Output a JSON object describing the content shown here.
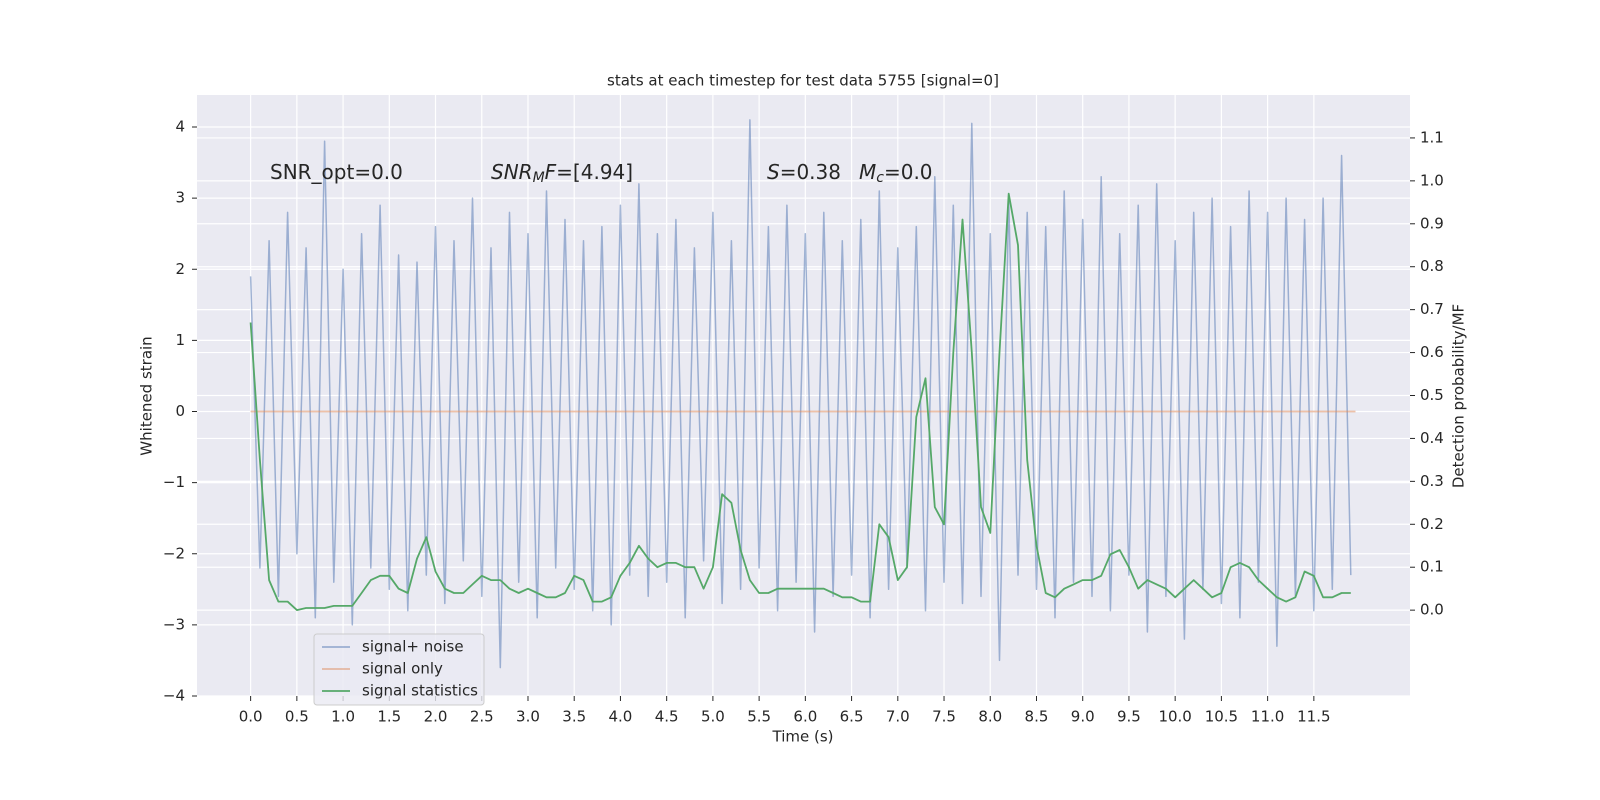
{
  "chart_data": {
    "type": "line",
    "title": "stats at each timestep for test data 5755 [signal=0]",
    "xlabel": "Time (s)",
    "ylabel": "Whitened strain",
    "y2label": "Detection probability/MF",
    "grid": true,
    "xlim": [
      -0.58,
      12.54
    ],
    "ylim": [
      -4,
      4.45
    ],
    "y2lim": [
      -0.2,
      1.2
    ],
    "xticks": [
      {
        "value": 0,
        "label": "0.0"
      },
      {
        "value": 0.5,
        "label": "0.5"
      },
      {
        "value": 1,
        "label": "1.0"
      },
      {
        "value": 1.5,
        "label": "1.5"
      },
      {
        "value": 2,
        "label": "2.0"
      },
      {
        "value": 2.5,
        "label": "2.5"
      },
      {
        "value": 3,
        "label": "3.0"
      },
      {
        "value": 3.5,
        "label": "3.5"
      },
      {
        "value": 4,
        "label": "4.0"
      },
      {
        "value": 4.5,
        "label": "4.5"
      },
      {
        "value": 5,
        "label": "5.0"
      },
      {
        "value": 5.5,
        "label": "5.5"
      },
      {
        "value": 6,
        "label": "6.0"
      },
      {
        "value": 6.5,
        "label": "6.5"
      },
      {
        "value": 7,
        "label": "7.0"
      },
      {
        "value": 7.5,
        "label": "7.5"
      },
      {
        "value": 8,
        "label": "8.0"
      },
      {
        "value": 8.5,
        "label": "8.5"
      },
      {
        "value": 9,
        "label": "9.0"
      },
      {
        "value": 9.5,
        "label": "9.5"
      },
      {
        "value": 10,
        "label": "10.0"
      },
      {
        "value": 10.5,
        "label": "10.5"
      },
      {
        "value": 11,
        "label": "11.0"
      },
      {
        "value": 11.5,
        "label": "11.5"
      }
    ],
    "yticks": [
      {
        "value": -4,
        "label": "−4"
      },
      {
        "value": -3,
        "label": "−3"
      },
      {
        "value": -2,
        "label": "−2"
      },
      {
        "value": -1,
        "label": "−1"
      },
      0,
      1,
      2,
      3,
      4
    ],
    "y2ticks": [
      {
        "value": 0,
        "label": "0.0"
      },
      0.1,
      0.2,
      0.3,
      0.4,
      0.5,
      0.6,
      0.7,
      0.8,
      0.9,
      {
        "value": 1,
        "label": "1.0"
      },
      1.1
    ],
    "annotations": [
      {
        "parts": [
          {
            "text": "SNR_opt=0.0"
          }
        ]
      },
      {
        "parts": [
          {
            "text": "SNR",
            "italic": true
          },
          {
            "text": "M",
            "italic": true,
            "sub": true
          },
          {
            "text": "F",
            "italic": true
          },
          {
            "text": "=[4.94]"
          }
        ]
      },
      {
        "parts": [
          {
            "text": "S",
            "italic": true
          },
          {
            "text": "=0.38"
          }
        ]
      },
      {
        "parts": [
          {
            "text": "M",
            "italic": true
          },
          {
            "text": "c",
            "italic": true,
            "sub": true
          },
          {
            "text": "=0.0"
          }
        ]
      }
    ],
    "x": [
      0.0,
      0.1,
      0.2,
      0.3,
      0.4,
      0.5,
      0.6,
      0.7,
      0.8,
      0.9,
      1.0,
      1.1,
      1.2,
      1.3,
      1.4,
      1.5,
      1.6,
      1.7,
      1.8,
      1.9,
      2.0,
      2.1,
      2.2,
      2.3,
      2.4,
      2.5,
      2.6,
      2.7,
      2.8,
      2.9,
      3.0,
      3.1,
      3.2,
      3.3,
      3.4,
      3.5,
      3.6,
      3.7,
      3.8,
      3.9,
      4.0,
      4.1,
      4.2,
      4.3,
      4.4,
      4.5,
      4.6,
      4.7,
      4.8,
      4.9,
      5.0,
      5.1,
      5.2,
      5.3,
      5.4,
      5.5,
      5.6,
      5.7,
      5.8,
      5.9,
      6.0,
      6.1,
      6.2,
      6.3,
      6.4,
      6.5,
      6.6,
      6.7,
      6.8,
      6.9,
      7.0,
      7.1,
      7.2,
      7.3,
      7.4,
      7.5,
      7.6,
      7.7,
      7.8,
      7.9,
      8.0,
      8.1,
      8.2,
      8.3,
      8.4,
      8.5,
      8.6,
      8.7,
      8.8,
      8.9,
      9.0,
      9.1,
      9.2,
      9.3,
      9.4,
      9.5,
      9.6,
      9.7,
      9.8,
      9.9,
      10.0,
      10.1,
      10.2,
      10.3,
      10.4,
      10.5,
      10.6,
      10.7,
      10.8,
      10.9,
      11.0,
      11.1,
      11.2,
      11.3,
      11.4,
      11.5,
      11.6,
      11.7,
      11.8,
      11.9
    ],
    "series": [
      {
        "name": "signal+ noise",
        "color": "#4c72b0",
        "values": [
          1.9,
          -2.2,
          2.4,
          -2.6,
          2.8,
          -2.0,
          2.3,
          -2.9,
          3.8,
          -2.4,
          2.0,
          -3.0,
          2.5,
          -2.2,
          2.9,
          -2.5,
          2.2,
          -2.8,
          2.1,
          -2.3,
          2.6,
          -2.7,
          2.4,
          -2.1,
          3.0,
          -2.6,
          2.3,
          -3.6,
          2.8,
          -2.4,
          2.5,
          -2.9,
          3.1,
          -2.2,
          2.7,
          -2.5,
          2.4,
          -2.8,
          2.6,
          -3.0,
          2.9,
          -2.3,
          3.2,
          -2.6,
          2.5,
          -2.4,
          2.7,
          -2.9,
          2.3,
          -2.1,
          2.8,
          -2.7,
          2.4,
          -2.5,
          4.1,
          -2.2,
          2.6,
          -2.8,
          2.9,
          -2.4,
          2.5,
          -3.1,
          2.8,
          -2.6,
          2.4,
          -2.3,
          2.7,
          -2.9,
          3.1,
          -2.5,
          2.3,
          -2.2,
          2.6,
          -2.8,
          3.3,
          -2.4,
          2.9,
          -2.7,
          4.05,
          -2.6,
          2.5,
          -3.5,
          3.0,
          -2.3,
          2.8,
          -2.5,
          2.6,
          -2.9,
          3.1,
          -2.4,
          2.7,
          -2.6,
          3.3,
          -2.8,
          2.5,
          -2.3,
          2.9,
          -3.1,
          3.2,
          -2.6,
          2.4,
          -3.2,
          2.8,
          -2.5,
          3.0,
          -2.7,
          2.6,
          -2.9,
          3.1,
          -2.4,
          2.8,
          -3.3,
          3.0,
          -2.6,
          2.7,
          -2.8,
          3.0,
          -2.5,
          3.6,
          -2.3
        ]
      },
      {
        "name": "signal only",
        "color": "#dd8452",
        "x": [
          0.0,
          11.95
        ],
        "values": [
          0,
          0
        ]
      },
      {
        "name": "signal statistics",
        "color": "#55a868",
        "axis": "y2",
        "values": [
          0.67,
          0.35,
          0.07,
          0.02,
          0.02,
          0.0,
          0.005,
          0.005,
          0.005,
          0.01,
          0.01,
          0.01,
          0.04,
          0.07,
          0.08,
          0.08,
          0.05,
          0.04,
          0.12,
          0.17,
          0.09,
          0.05,
          0.04,
          0.04,
          0.06,
          0.08,
          0.07,
          0.07,
          0.05,
          0.04,
          0.05,
          0.04,
          0.03,
          0.03,
          0.04,
          0.08,
          0.07,
          0.02,
          0.02,
          0.03,
          0.08,
          0.11,
          0.15,
          0.12,
          0.1,
          0.11,
          0.11,
          0.1,
          0.1,
          0.05,
          0.1,
          0.27,
          0.25,
          0.14,
          0.07,
          0.04,
          0.04,
          0.05,
          0.05,
          0.05,
          0.05,
          0.05,
          0.05,
          0.04,
          0.03,
          0.03,
          0.02,
          0.02,
          0.2,
          0.17,
          0.07,
          0.1,
          0.45,
          0.54,
          0.24,
          0.2,
          0.6,
          0.91,
          0.6,
          0.24,
          0.18,
          0.6,
          0.97,
          0.85,
          0.35,
          0.15,
          0.04,
          0.03,
          0.05,
          0.06,
          0.07,
          0.07,
          0.08,
          0.13,
          0.14,
          0.1,
          0.05,
          0.07,
          0.06,
          0.05,
          0.03,
          0.05,
          0.07,
          0.05,
          0.03,
          0.04,
          0.1,
          0.11,
          0.1,
          0.07,
          0.05,
          0.03,
          0.02,
          0.03,
          0.09,
          0.08,
          0.03,
          0.03,
          0.04,
          0.04
        ]
      }
    ]
  }
}
